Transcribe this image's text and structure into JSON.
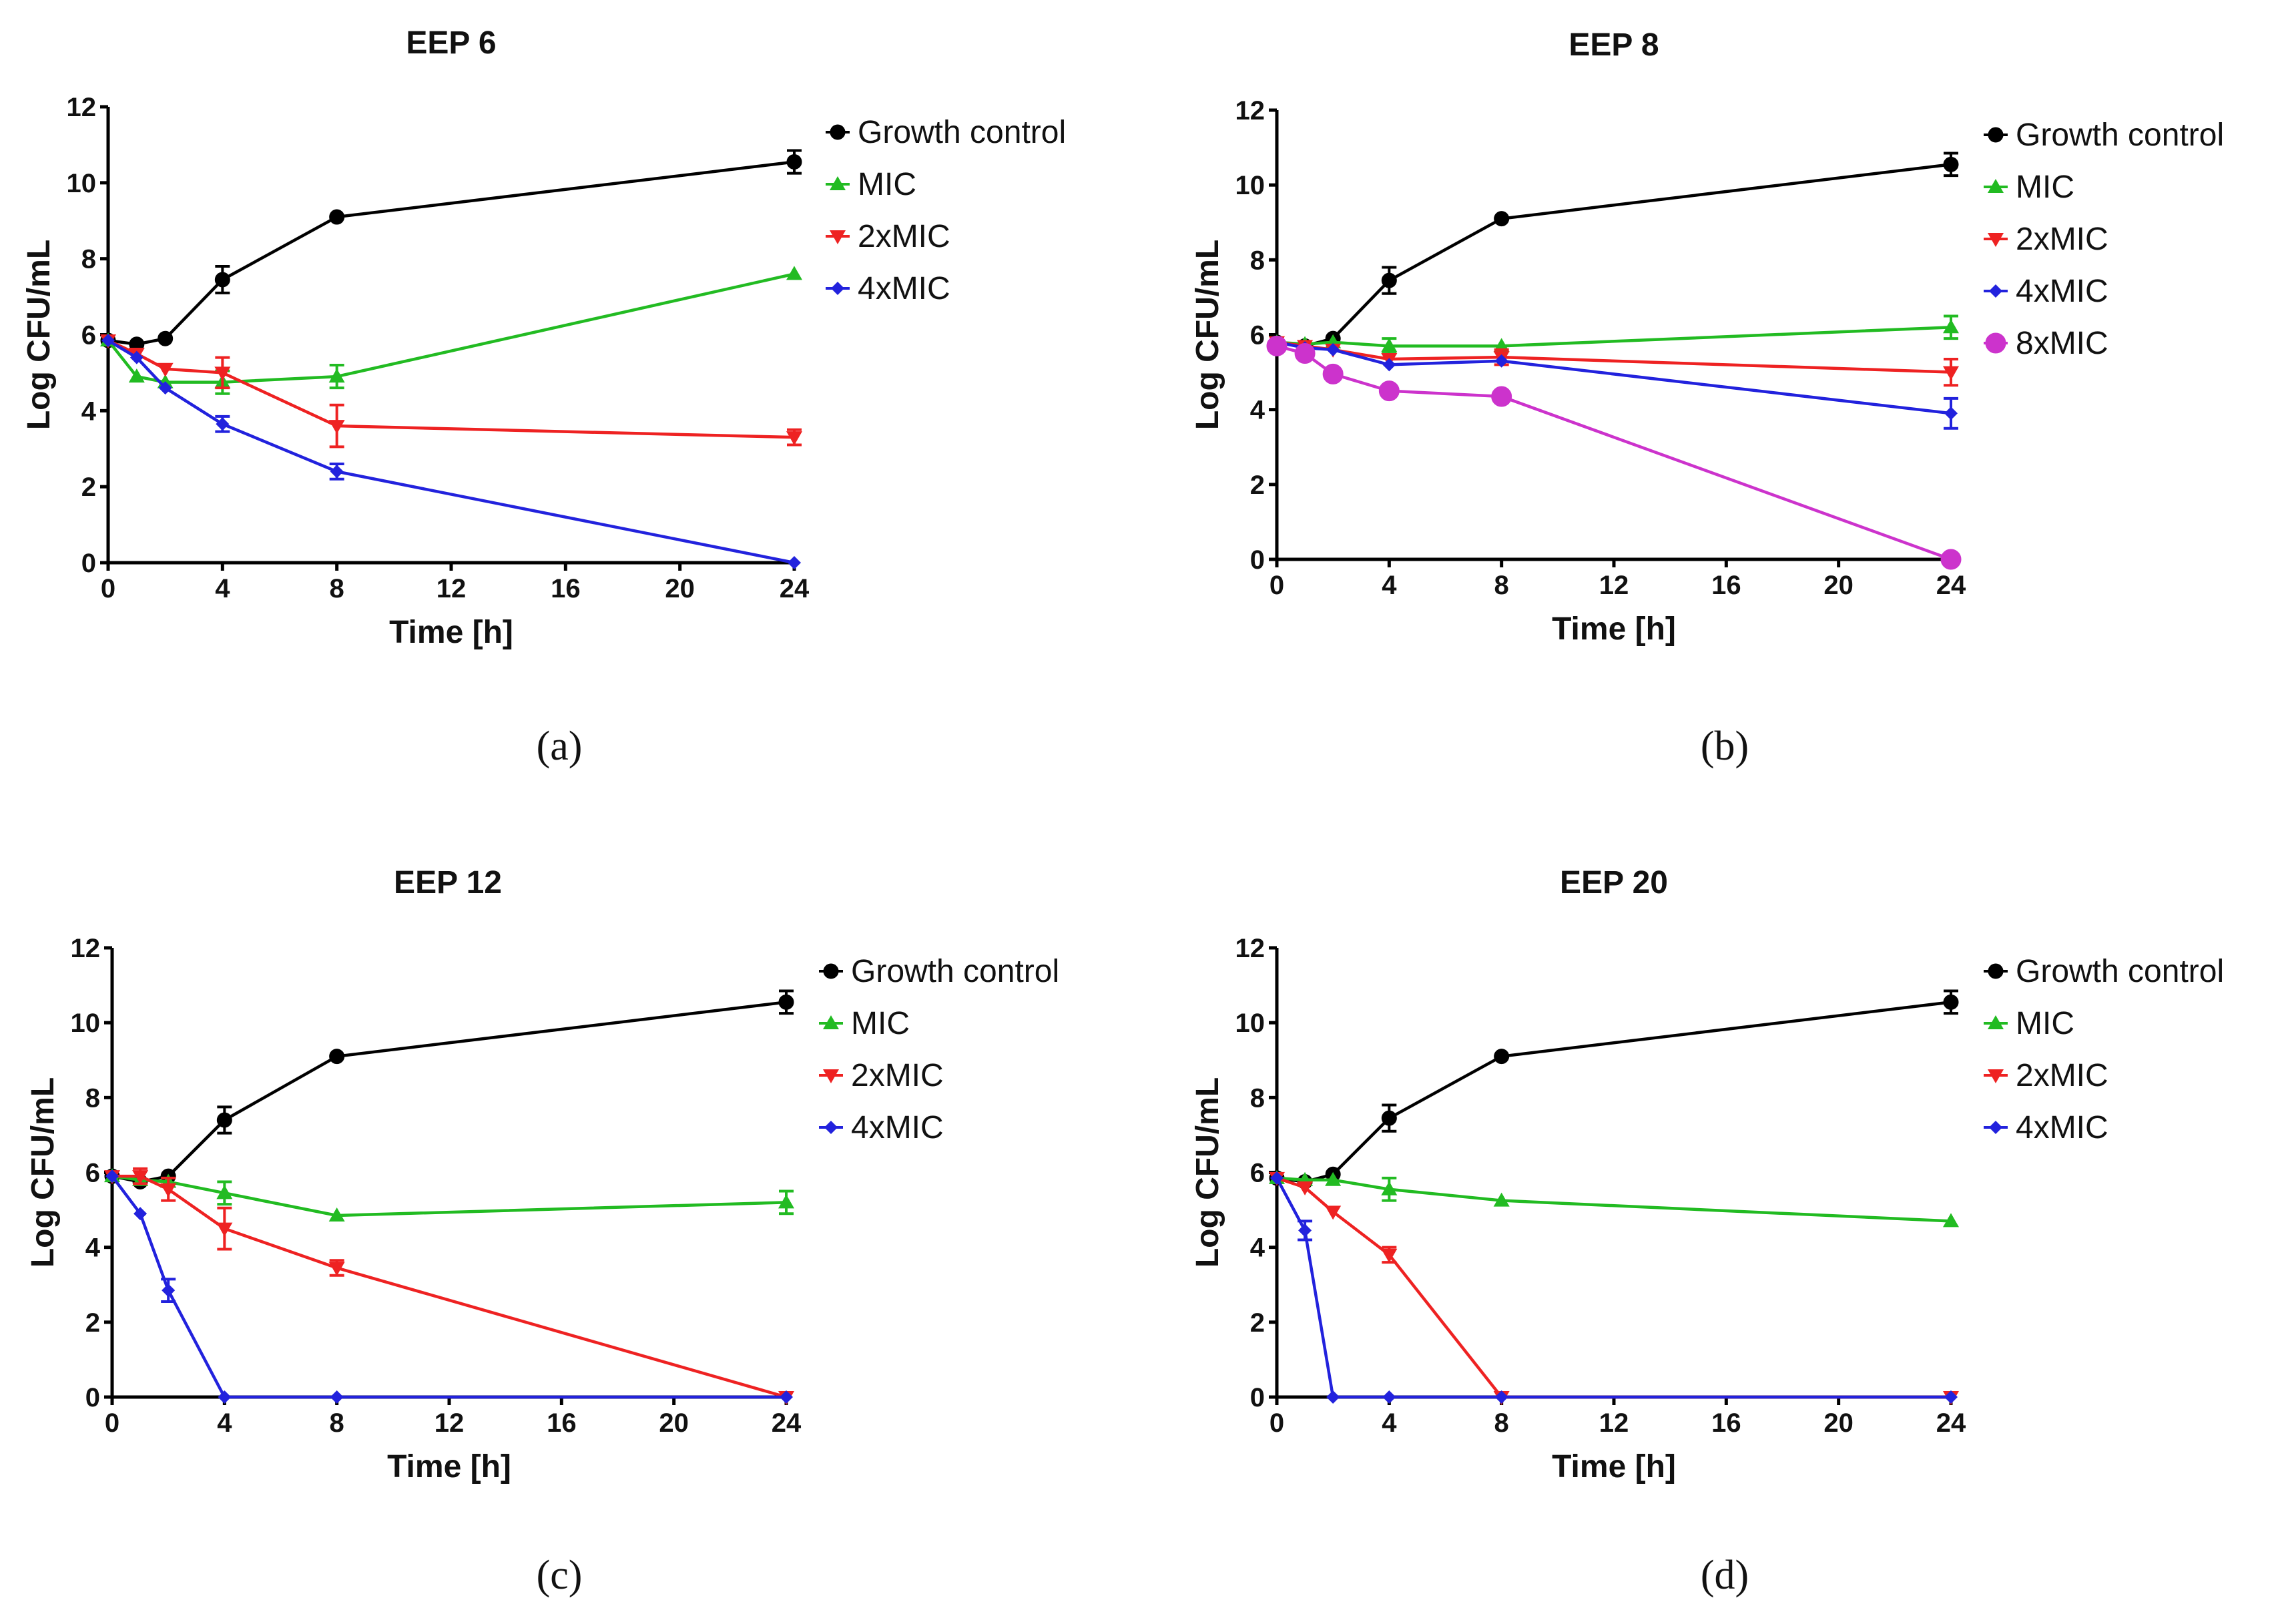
{
  "chart_data": [
    {
      "type": "line",
      "panel": "(a)",
      "title": "EEP 6",
      "xlabel": "Time [h]",
      "ylabel": "Log CFU/mL",
      "xlim": [
        0,
        24
      ],
      "ylim": [
        0,
        12
      ],
      "xticks": [
        0,
        4,
        8,
        12,
        16,
        20,
        24
      ],
      "yticks": [
        0,
        2,
        4,
        6,
        8,
        10,
        12
      ],
      "series": [
        {
          "name": "Growth control",
          "color": "#000000",
          "marker": "circle",
          "x": [
            0,
            1,
            2,
            4,
            8,
            24
          ],
          "y": [
            5.85,
            5.75,
            5.9,
            7.45,
            9.1,
            10.55
          ],
          "err": [
            0,
            0,
            0,
            0.35,
            0,
            0.3
          ]
        },
        {
          "name": "MIC",
          "color": "#22bb22",
          "marker": "triangle-up",
          "x": [
            0,
            1,
            2,
            4,
            8,
            24
          ],
          "y": [
            5.85,
            4.9,
            4.75,
            4.75,
            4.9,
            7.6
          ],
          "err": [
            0,
            0,
            0,
            0.3,
            0.3,
            0
          ]
        },
        {
          "name": "2xMIC",
          "color": "#ee2222",
          "marker": "triangle-down",
          "x": [
            0,
            1,
            2,
            4,
            8,
            24
          ],
          "y": [
            5.85,
            5.5,
            5.1,
            5.0,
            3.6,
            3.3
          ],
          "err": [
            0,
            0,
            0,
            0.4,
            0.55,
            0.2
          ]
        },
        {
          "name": "4xMIC",
          "color": "#2222dd",
          "marker": "diamond",
          "x": [
            0,
            1,
            2,
            4,
            8,
            24
          ],
          "y": [
            5.85,
            5.4,
            4.6,
            3.65,
            2.4,
            0.0
          ],
          "err": [
            0,
            0,
            0,
            0.2,
            0.2,
            0
          ]
        }
      ]
    },
    {
      "type": "line",
      "panel": "(b)",
      "title": "EEP 8",
      "xlabel": "Time [h]",
      "ylabel": "Log CFU/mL",
      "xlim": [
        0,
        24
      ],
      "ylim": [
        0,
        12
      ],
      "xticks": [
        0,
        4,
        8,
        12,
        16,
        20,
        24
      ],
      "yticks": [
        0,
        2,
        4,
        6,
        8,
        10,
        12
      ],
      "series": [
        {
          "name": "Growth control",
          "color": "#000000",
          "marker": "circle",
          "x": [
            0,
            1,
            2,
            4,
            8,
            24
          ],
          "y": [
            5.8,
            5.7,
            5.9,
            7.45,
            9.1,
            10.55
          ],
          "err": [
            0,
            0,
            0,
            0.35,
            0,
            0.3
          ]
        },
        {
          "name": "MIC",
          "color": "#22bb22",
          "marker": "triangle-up",
          "x": [
            0,
            1,
            2,
            4,
            8,
            24
          ],
          "y": [
            5.8,
            5.75,
            5.8,
            5.7,
            5.7,
            6.2
          ],
          "err": [
            0,
            0,
            0,
            0.2,
            0,
            0.3
          ]
        },
        {
          "name": "2xMIC",
          "color": "#ee2222",
          "marker": "triangle-down",
          "x": [
            0,
            1,
            2,
            4,
            8,
            24
          ],
          "y": [
            5.8,
            5.7,
            5.6,
            5.35,
            5.4,
            5.0
          ],
          "err": [
            0,
            0,
            0,
            0,
            0.2,
            0.35
          ]
        },
        {
          "name": "4xMIC",
          "color": "#2222dd",
          "marker": "diamond",
          "x": [
            0,
            1,
            2,
            4,
            8,
            24
          ],
          "y": [
            5.8,
            5.65,
            5.6,
            5.2,
            5.3,
            3.9
          ],
          "err": [
            0,
            0,
            0,
            0,
            0,
            0.4
          ]
        },
        {
          "name": "8xMIC",
          "color": "#cc33cc",
          "marker": "big-circle",
          "x": [
            0,
            1,
            2,
            4,
            8,
            24
          ],
          "y": [
            5.7,
            5.5,
            4.95,
            4.5,
            4.35,
            0.0
          ],
          "err": [
            0,
            0,
            0,
            0,
            0,
            0
          ]
        }
      ]
    },
    {
      "type": "line",
      "panel": "(c)",
      "title": "EEP 12",
      "xlabel": "Time [h]",
      "ylabel": "Log CFU/mL",
      "xlim": [
        0,
        24
      ],
      "ylim": [
        0,
        12
      ],
      "xticks": [
        0,
        4,
        8,
        12,
        16,
        20,
        24
      ],
      "yticks": [
        0,
        2,
        4,
        6,
        8,
        10,
        12
      ],
      "series": [
        {
          "name": "Growth control",
          "color": "#000000",
          "marker": "circle",
          "x": [
            0,
            1,
            2,
            4,
            8,
            24
          ],
          "y": [
            5.9,
            5.75,
            5.9,
            7.4,
            9.1,
            10.55
          ],
          "err": [
            0,
            0,
            0,
            0.35,
            0,
            0.3
          ]
        },
        {
          "name": "MIC",
          "color": "#22bb22",
          "marker": "triangle-up",
          "x": [
            0,
            1,
            2,
            4,
            8,
            24
          ],
          "y": [
            5.9,
            5.8,
            5.75,
            5.45,
            4.85,
            5.2
          ],
          "err": [
            0,
            0,
            0,
            0.3,
            0,
            0.3
          ]
        },
        {
          "name": "2xMIC",
          "color": "#ee2222",
          "marker": "triangle-down",
          "x": [
            0,
            1,
            2,
            4,
            8,
            24
          ],
          "y": [
            5.9,
            5.9,
            5.55,
            4.5,
            3.45,
            0.0
          ],
          "err": [
            0,
            0.2,
            0.3,
            0.55,
            0.2,
            0
          ]
        },
        {
          "name": "4xMIC",
          "color": "#2222dd",
          "marker": "diamond",
          "x": [
            0,
            1,
            2,
            4,
            8,
            24
          ],
          "y": [
            5.9,
            4.9,
            2.85,
            0.0,
            0.0,
            0.0
          ],
          "err": [
            0,
            0,
            0.3,
            0,
            0,
            0
          ]
        }
      ]
    },
    {
      "type": "line",
      "panel": "(d)",
      "title": "EEP 20",
      "xlabel": "Time [h]",
      "ylabel": "Log CFU/mL",
      "xlim": [
        0,
        24
      ],
      "ylim": [
        0,
        12
      ],
      "xticks": [
        0,
        4,
        8,
        12,
        16,
        20,
        24
      ],
      "yticks": [
        0,
        2,
        4,
        6,
        8,
        10,
        12
      ],
      "series": [
        {
          "name": "Growth control",
          "color": "#000000",
          "marker": "circle",
          "x": [
            0,
            1,
            2,
            4,
            8,
            24
          ],
          "y": [
            5.85,
            5.75,
            5.95,
            7.45,
            9.1,
            10.55
          ],
          "err": [
            0,
            0,
            0,
            0.35,
            0,
            0.3
          ]
        },
        {
          "name": "MIC",
          "color": "#22bb22",
          "marker": "triangle-up",
          "x": [
            0,
            1,
            2,
            4,
            8,
            24
          ],
          "y": [
            5.85,
            5.8,
            5.8,
            5.55,
            5.25,
            4.7
          ],
          "err": [
            0,
            0,
            0,
            0.3,
            0,
            0
          ]
        },
        {
          "name": "2xMIC",
          "color": "#ee2222",
          "marker": "triangle-down",
          "x": [
            0,
            1,
            2,
            4,
            8,
            24
          ],
          "y": [
            5.85,
            5.6,
            4.95,
            3.8,
            0.0,
            0.0
          ],
          "err": [
            0,
            0,
            0,
            0.2,
            0,
            0
          ]
        },
        {
          "name": "4xMIC",
          "color": "#2222dd",
          "marker": "diamond",
          "x": [
            0,
            1,
            2,
            4,
            8,
            24
          ],
          "y": [
            5.85,
            4.45,
            0.0,
            0.0,
            0.0,
            0.0
          ],
          "err": [
            0,
            0.25,
            0,
            0,
            0,
            0
          ]
        }
      ]
    }
  ]
}
